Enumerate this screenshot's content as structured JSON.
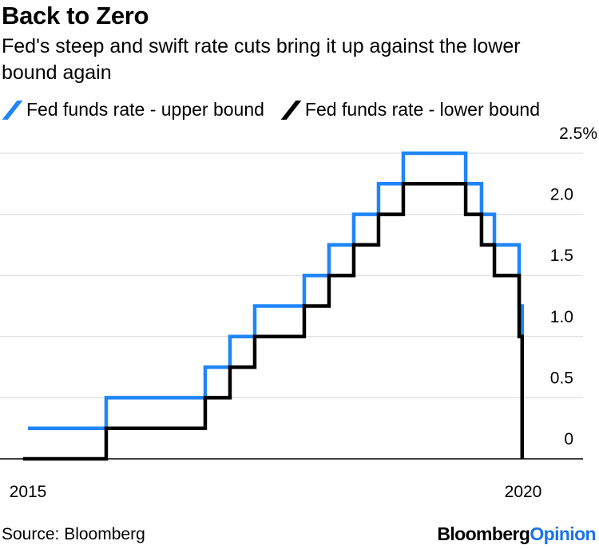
{
  "header": {
    "title": "Back to Zero",
    "subtitle": "Fed's steep and swift rate cuts bring it up against the lower bound again"
  },
  "footer": {
    "source": "Source: Bloomberg",
    "brand_part1": "Bloomberg",
    "brand_part2": "Opinion"
  },
  "colors": {
    "upper": "#1f85f8",
    "lower": "#000000",
    "brand_accent": "#1a73e8"
  },
  "chart_data": {
    "type": "line",
    "title": "Back to Zero",
    "subtitle": "Fed's steep and swift rate cuts bring it up against the lower bound again",
    "xlabel": "",
    "ylabel": "",
    "xlim": [
      2015.0,
      2020.25
    ],
    "ylim": [
      0,
      2.5
    ],
    "y_ticks": [
      0,
      0.5,
      1.0,
      1.5,
      2.0,
      2.5
    ],
    "y_tick_labels": [
      "0",
      "0.5",
      "1.0",
      "1.5",
      "2.0",
      "2.5%"
    ],
    "x_ticks": [
      2015,
      2020
    ],
    "x_tick_labels": [
      "2015",
      "2020"
    ],
    "grid": true,
    "legend_position": "top-left",
    "step": true,
    "series": [
      {
        "name": "Fed funds rate - upper bound",
        "color": "#1f85f8",
        "points": [
          [
            2015.0,
            0.25
          ],
          [
            2015.79,
            0.5
          ],
          [
            2016.79,
            0.75
          ],
          [
            2017.04,
            1.0
          ],
          [
            2017.29,
            1.25
          ],
          [
            2017.79,
            1.5
          ],
          [
            2018.04,
            1.75
          ],
          [
            2018.29,
            2.0
          ],
          [
            2018.54,
            2.25
          ],
          [
            2018.79,
            2.5
          ],
          [
            2019.42,
            2.25
          ],
          [
            2019.58,
            2.0
          ],
          [
            2019.71,
            1.75
          ],
          [
            2019.96,
            1.25
          ],
          [
            2019.99,
            0.25
          ]
        ]
      },
      {
        "name": "Fed funds rate - lower bound",
        "color": "#000000",
        "points": [
          [
            2014.95,
            0.0
          ],
          [
            2015.79,
            0.25
          ],
          [
            2016.79,
            0.5
          ],
          [
            2017.04,
            0.75
          ],
          [
            2017.29,
            1.0
          ],
          [
            2017.79,
            1.25
          ],
          [
            2018.04,
            1.5
          ],
          [
            2018.29,
            1.75
          ],
          [
            2018.54,
            2.0
          ],
          [
            2018.79,
            2.25
          ],
          [
            2019.42,
            2.0
          ],
          [
            2019.58,
            1.75
          ],
          [
            2019.71,
            1.5
          ],
          [
            2019.96,
            1.0
          ],
          [
            2019.99,
            0.0
          ]
        ]
      }
    ]
  }
}
